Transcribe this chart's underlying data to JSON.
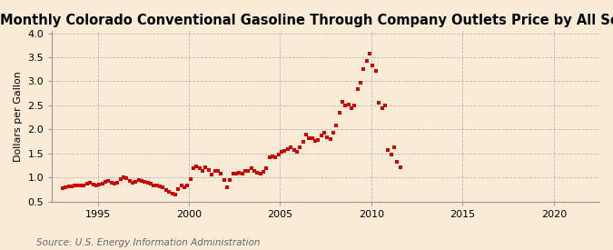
{
  "title": "Monthly Colorado Conventional Gasoline Through Company Outlets Price by All Sellers",
  "ylabel": "Dollars per Gallon",
  "source_text": "Source: U.S. Energy Information Administration",
  "background_color": "#faebd7",
  "plot_bg_color": "#faebd7",
  "marker_color": "#cc0000",
  "marker": "s",
  "marker_size": 3.2,
  "xlim": [
    1992.5,
    2022.5
  ],
  "ylim": [
    0.5,
    4.05
  ],
  "yticks": [
    0.5,
    1.0,
    1.5,
    2.0,
    2.5,
    3.0,
    3.5,
    4.0
  ],
  "xticks": [
    1995,
    2000,
    2005,
    2010,
    2015,
    2020
  ],
  "title_fontsize": 10.5,
  "label_fontsize": 8,
  "tick_fontsize": 8,
  "source_fontsize": 7.5,
  "grid_color": "#aaaaaa",
  "grid_linestyle": "--",
  "data": [
    [
      1993.08,
      0.77
    ],
    [
      1993.25,
      0.79
    ],
    [
      1993.42,
      0.81
    ],
    [
      1993.58,
      0.82
    ],
    [
      1993.75,
      0.83
    ],
    [
      1993.92,
      0.84
    ],
    [
      1994.08,
      0.84
    ],
    [
      1994.25,
      0.84
    ],
    [
      1994.42,
      0.87
    ],
    [
      1994.58,
      0.89
    ],
    [
      1994.75,
      0.86
    ],
    [
      1994.92,
      0.84
    ],
    [
      1995.08,
      0.85
    ],
    [
      1995.25,
      0.88
    ],
    [
      1995.42,
      0.92
    ],
    [
      1995.58,
      0.93
    ],
    [
      1995.75,
      0.9
    ],
    [
      1995.92,
      0.88
    ],
    [
      1996.08,
      0.89
    ],
    [
      1996.25,
      0.97
    ],
    [
      1996.42,
      1.0
    ],
    [
      1996.58,
      0.98
    ],
    [
      1996.75,
      0.93
    ],
    [
      1996.92,
      0.9
    ],
    [
      1997.08,
      0.92
    ],
    [
      1997.25,
      0.94
    ],
    [
      1997.42,
      0.93
    ],
    [
      1997.58,
      0.91
    ],
    [
      1997.75,
      0.89
    ],
    [
      1997.92,
      0.87
    ],
    [
      1998.08,
      0.84
    ],
    [
      1998.25,
      0.83
    ],
    [
      1998.42,
      0.81
    ],
    [
      1998.58,
      0.79
    ],
    [
      1998.75,
      0.74
    ],
    [
      1998.92,
      0.71
    ],
    [
      1999.08,
      0.67
    ],
    [
      1999.25,
      0.65
    ],
    [
      1999.42,
      0.75
    ],
    [
      1999.58,
      0.83
    ],
    [
      1999.75,
      0.8
    ],
    [
      1999.92,
      0.83
    ],
    [
      2000.08,
      0.97
    ],
    [
      2000.25,
      1.2
    ],
    [
      2000.42,
      1.24
    ],
    [
      2000.58,
      1.19
    ],
    [
      2000.75,
      1.14
    ],
    [
      2000.92,
      1.21
    ],
    [
      2001.08,
      1.16
    ],
    [
      2001.25,
      1.07
    ],
    [
      2001.42,
      1.13
    ],
    [
      2001.58,
      1.13
    ],
    [
      2001.75,
      1.08
    ],
    [
      2001.92,
      0.95
    ],
    [
      2002.08,
      0.79
    ],
    [
      2002.25,
      0.95
    ],
    [
      2002.42,
      1.08
    ],
    [
      2002.58,
      1.08
    ],
    [
      2002.75,
      1.1
    ],
    [
      2002.92,
      1.09
    ],
    [
      2003.08,
      1.13
    ],
    [
      2003.25,
      1.13
    ],
    [
      2003.42,
      1.19
    ],
    [
      2003.58,
      1.14
    ],
    [
      2003.75,
      1.1
    ],
    [
      2003.92,
      1.09
    ],
    [
      2004.08,
      1.12
    ],
    [
      2004.25,
      1.2
    ],
    [
      2004.42,
      1.43
    ],
    [
      2004.58,
      1.44
    ],
    [
      2004.75,
      1.42
    ],
    [
      2004.92,
      1.48
    ],
    [
      2005.08,
      1.53
    ],
    [
      2005.25,
      1.56
    ],
    [
      2005.42,
      1.6
    ],
    [
      2005.58,
      1.62
    ],
    [
      2005.75,
      1.57
    ],
    [
      2005.92,
      1.54
    ],
    [
      2006.08,
      1.63
    ],
    [
      2006.25,
      1.75
    ],
    [
      2006.42,
      1.9
    ],
    [
      2006.58,
      1.82
    ],
    [
      2006.75,
      1.82
    ],
    [
      2006.92,
      1.77
    ],
    [
      2007.08,
      1.78
    ],
    [
      2007.25,
      1.88
    ],
    [
      2007.42,
      1.93
    ],
    [
      2007.58,
      1.83
    ],
    [
      2007.75,
      1.8
    ],
    [
      2007.92,
      1.94
    ],
    [
      2008.08,
      2.08
    ],
    [
      2008.25,
      2.35
    ],
    [
      2008.42,
      2.58
    ],
    [
      2008.58,
      2.5
    ],
    [
      2008.75,
      2.52
    ],
    [
      2008.92,
      2.45
    ],
    [
      2009.08,
      2.5
    ],
    [
      2009.25,
      2.83
    ],
    [
      2009.42,
      2.98
    ],
    [
      2009.58,
      3.25
    ],
    [
      2009.75,
      3.43
    ],
    [
      2009.92,
      3.58
    ],
    [
      2010.08,
      3.33
    ],
    [
      2010.25,
      3.22
    ],
    [
      2010.42,
      2.56
    ],
    [
      2010.58,
      2.44
    ],
    [
      2010.75,
      2.49
    ],
    [
      2010.92,
      1.58
    ],
    [
      2011.08,
      1.48
    ],
    [
      2011.25,
      1.62
    ],
    [
      2011.42,
      1.32
    ],
    [
      2011.58,
      1.22
    ]
  ]
}
